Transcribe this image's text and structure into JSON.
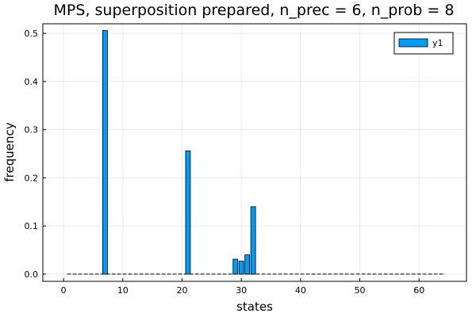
{
  "chart_data": {
    "type": "bar",
    "title": "MPS, superposition prepared, n_prec = 6, n_prob = 8",
    "xlabel": "states",
    "ylabel": "frequency",
    "xlim": [
      -3.5,
      68
    ],
    "ylim": [
      -0.015,
      0.52
    ],
    "xticks": [
      0,
      10,
      20,
      30,
      40,
      50,
      60
    ],
    "xtick_labels": [
      "0",
      "10",
      "20",
      "30",
      "40",
      "50",
      "60"
    ],
    "yticks": [
      0.0,
      0.1,
      0.2,
      0.3,
      0.4,
      0.5
    ],
    "ytick_labels": [
      "0.0",
      "0.1",
      "0.2",
      "0.3",
      "0.4",
      "0.5"
    ],
    "grid": true,
    "legend_position": "top-right",
    "bar_width": 0.8,
    "x_start": 1,
    "x_end": 64,
    "series": [
      {
        "name": "y1",
        "color": "#009af9",
        "points": [
          {
            "x": 7,
            "y": 0.506
          },
          {
            "x": 21,
            "y": 0.256
          },
          {
            "x": 29,
            "y": 0.031
          },
          {
            "x": 30,
            "y": 0.027
          },
          {
            "x": 31,
            "y": 0.04
          },
          {
            "x": 32,
            "y": 0.14
          }
        ]
      }
    ]
  }
}
